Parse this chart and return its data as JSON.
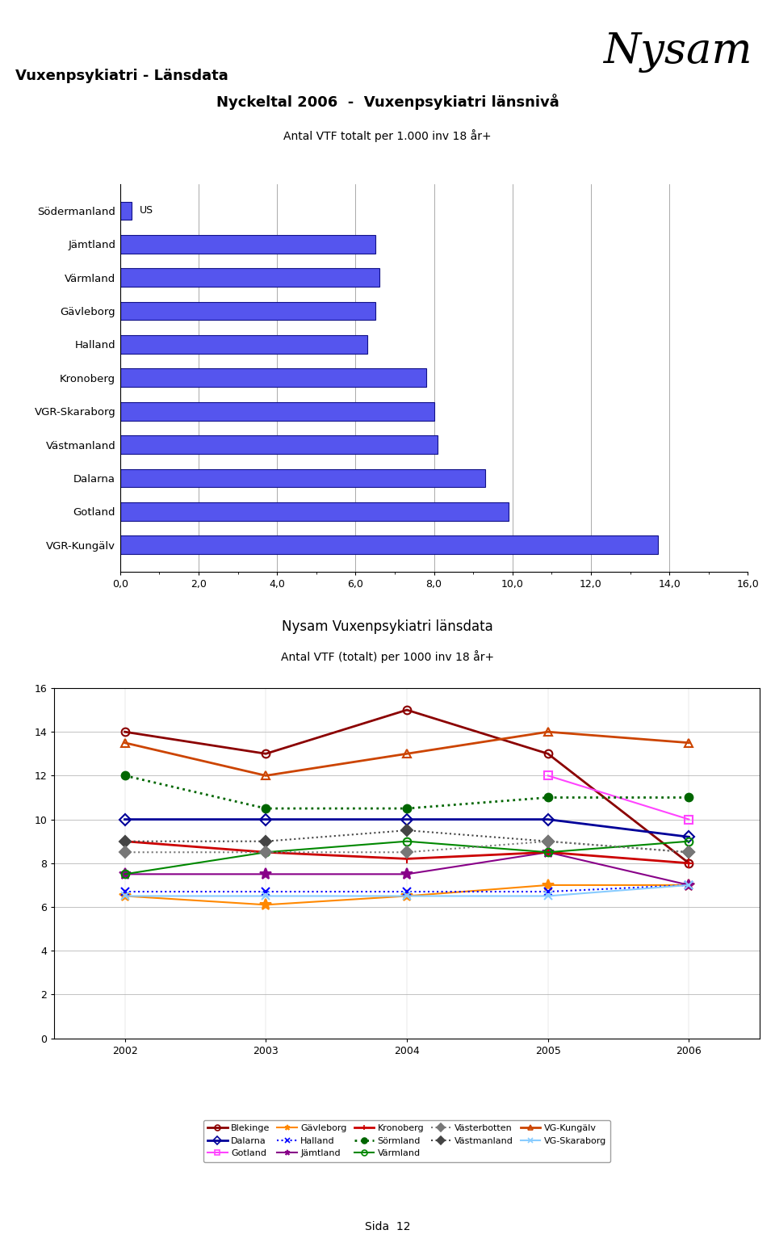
{
  "page_title": "Vuxenpsykiatri - Länsdata",
  "nysam_logo": "Nysam",
  "bar_title_line1": "Nyckeltal 2006  -  Vuxenpsykiatri länsnivå",
  "bar_title_line2": "Antal VTF totalt per 1.000 inv 18 år+",
  "bar_categories": [
    "Södermanland",
    "Jämtland",
    "Värmland",
    "Gävleborg",
    "Halland",
    "Kronoberg",
    "VGR-Skaraborg",
    "Västmanland",
    "Dalarna",
    "Gotland",
    "VGR-Kungälv"
  ],
  "bar_values": [
    0.3,
    6.5,
    6.6,
    6.5,
    6.3,
    7.8,
    8.0,
    8.1,
    9.3,
    9.9,
    13.7
  ],
  "bar_color": "#5555ee",
  "bar_xticks": [
    0.0,
    2.0,
    4.0,
    6.0,
    8.0,
    10.0,
    12.0,
    14.0,
    16.0
  ],
  "sodermanland_label": "US",
  "line_title_line1": "Nysam Vuxenpsykiatri länsdata",
  "line_title_line2": "Antal VTF (totalt) per 1000 inv 18 år+",
  "line_years": [
    2002,
    2003,
    2004,
    2005,
    2006
  ],
  "line_ylim": [
    0,
    16
  ],
  "line_yticks": [
    0,
    2,
    4,
    6,
    8,
    10,
    12,
    14,
    16
  ],
  "series": {
    "Blekinge": {
      "values": [
        14.0,
        13.0,
        15.0,
        13.0,
        8.0
      ],
      "color": "#8B0000",
      "style": "-",
      "marker": "o",
      "markerface": "none",
      "linewidth": 2.0
    },
    "Dalarna": {
      "values": [
        10.0,
        10.0,
        10.0,
        10.0,
        9.2
      ],
      "color": "#000099",
      "style": "-",
      "marker": "D",
      "markerface": "none",
      "linewidth": 2.0
    },
    "Gotland": {
      "values": [
        null,
        null,
        null,
        12.0,
        10.0
      ],
      "color": "#ff44ff",
      "style": "-",
      "marker": "s",
      "markerface": "none",
      "linewidth": 1.5
    },
    "Gävleborg": {
      "values": [
        6.5,
        6.1,
        6.5,
        7.0,
        7.0
      ],
      "color": "#ff8800",
      "style": "-",
      "marker": "*",
      "markerface": "fill",
      "linewidth": 1.5
    },
    "Halland": {
      "values": [
        6.7,
        6.7,
        6.7,
        6.7,
        7.0
      ],
      "color": "#0000ff",
      "style": ":",
      "marker": "x",
      "markerface": "fill",
      "linewidth": 1.5
    },
    "Jämtland": {
      "values": [
        7.5,
        7.5,
        7.5,
        8.5,
        7.0
      ],
      "color": "#880088",
      "style": "-",
      "marker": "*",
      "markerface": "fill",
      "linewidth": 1.5
    },
    "Kronoberg": {
      "values": [
        9.0,
        8.5,
        8.2,
        8.5,
        8.0
      ],
      "color": "#cc0000",
      "style": "-",
      "marker": "+",
      "markerface": "fill",
      "linewidth": 2.0
    },
    "Sörmland": {
      "values": [
        12.0,
        10.5,
        10.5,
        11.0,
        11.0
      ],
      "color": "#006600",
      "style": ":",
      "marker": "o",
      "markerface": "fill",
      "linewidth": 2.0
    },
    "VG-Kungälv": {
      "values": [
        13.5,
        12.0,
        13.0,
        14.0,
        13.5
      ],
      "color": "#cc4400",
      "style": "-",
      "marker": "^",
      "markerface": "none",
      "linewidth": 2.0
    },
    "VG-Skaraborg": {
      "values": [
        6.5,
        6.5,
        6.5,
        6.5,
        7.0
      ],
      "color": "#88ccff",
      "style": "-",
      "marker": "x",
      "markerface": "fill",
      "linewidth": 1.5
    },
    "Västmanland": {
      "values": [
        9.0,
        9.0,
        9.5,
        9.0,
        8.5
      ],
      "color": "#444444",
      "style": ":",
      "marker": "D",
      "markerface": "fill",
      "linewidth": 1.5
    },
    "Värmland": {
      "values": [
        7.5,
        8.5,
        9.0,
        8.5,
        9.0
      ],
      "color": "#008800",
      "style": "-",
      "marker": "o",
      "markerface": "none",
      "linewidth": 1.5
    },
    "Västerbotten": {
      "values": [
        8.5,
        8.5,
        8.5,
        9.0,
        8.5
      ],
      "color": "#777777",
      "style": ":",
      "marker": "D",
      "markerface": "fill",
      "linewidth": 1.5
    }
  },
  "legend_order": [
    "Blekinge",
    "Dalarna",
    "Gotland",
    "Gävleborg",
    "Halland",
    "Jämtland",
    "Kronoberg",
    "Sörmland",
    "Västmanland",
    "VG-Kungälv",
    "VG-Skaraborg",
    "Värmland",
    "Västerbotten"
  ],
  "background_color": "#c8eef8",
  "plot_bg_color": "#ffffff",
  "page_bg_color": "#ffffff",
  "footer": "Sida  12"
}
